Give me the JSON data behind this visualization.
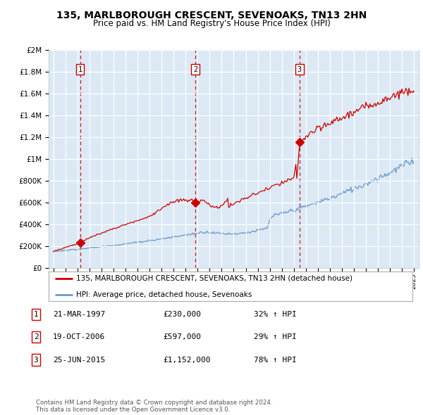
{
  "title": "135, MARLBOROUGH CRESCENT, SEVENOAKS, TN13 2HN",
  "subtitle": "Price paid vs. HM Land Registry's House Price Index (HPI)",
  "fig_bg_color": "#ffffff",
  "plot_bg_color": "#dce9f5",
  "ylim": [
    0,
    2000000
  ],
  "yticks": [
    0,
    200000,
    400000,
    600000,
    800000,
    1000000,
    1200000,
    1400000,
    1600000,
    1800000,
    2000000
  ],
  "ytick_labels": [
    "£0",
    "£200K",
    "£400K",
    "£600K",
    "£800K",
    "£1M",
    "£1.2M",
    "£1.4M",
    "£1.6M",
    "£1.8M",
    "£2M"
  ],
  "xlim_start": 1994.6,
  "xlim_end": 2025.4,
  "xticks": [
    1995,
    1996,
    1997,
    1998,
    1999,
    2000,
    2001,
    2002,
    2003,
    2004,
    2005,
    2006,
    2007,
    2008,
    2009,
    2010,
    2011,
    2012,
    2013,
    2014,
    2015,
    2016,
    2017,
    2018,
    2019,
    2020,
    2021,
    2022,
    2023,
    2024,
    2025
  ],
  "sale_dates": [
    1997.22,
    2006.8,
    2015.48
  ],
  "sale_prices": [
    230000,
    597000,
    1152000
  ],
  "sale_labels": [
    "1",
    "2",
    "3"
  ],
  "red_line_color": "#cc0000",
  "blue_line_color": "#6699cc",
  "legend_red_label": "135, MARLBOROUGH CRESCENT, SEVENOAKS, TN13 2HN (detached house)",
  "legend_blue_label": "HPI: Average price, detached house, Sevenoaks",
  "table_rows": [
    {
      "num": "1",
      "date": "21-MAR-1997",
      "price": "£230,000",
      "pct": "32% ↑ HPI"
    },
    {
      "num": "2",
      "date": "19-OCT-2006",
      "price": "£597,000",
      "pct": "29% ↑ HPI"
    },
    {
      "num": "3",
      "date": "25-JUN-2015",
      "price": "£1,152,000",
      "pct": "78% ↑ HPI"
    }
  ],
  "footer": "Contains HM Land Registry data © Crown copyright and database right 2024.\nThis data is licensed under the Open Government Licence v3.0."
}
